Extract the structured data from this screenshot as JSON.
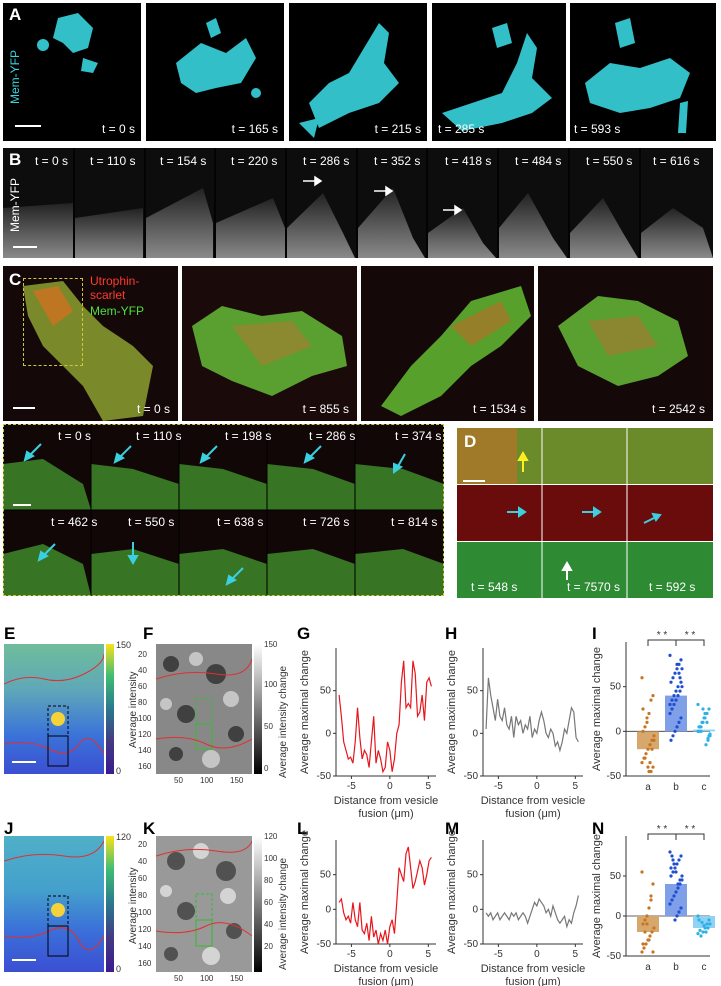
{
  "figure": {
    "panel_letters": [
      "A",
      "B",
      "C",
      "D",
      "E",
      "F",
      "G",
      "H",
      "I",
      "J",
      "K",
      "L",
      "M",
      "N"
    ],
    "panelA": {
      "channel_label": "Mem-YFP",
      "times": [
        "t = 0 s",
        "t = 165 s",
        "t = 215 s",
        "t = 285 s",
        "t = 593 s"
      ],
      "color": "#39d4de"
    },
    "panelB": {
      "channel_label": "Mem-YFP",
      "times": [
        "t = 0 s",
        "t = 110 s",
        "t = 154 s",
        "t = 220 s",
        "t = 286 s",
        "t = 352 s",
        "t = 418 s",
        "t = 484 s",
        "t = 550 s",
        "t = 616 s"
      ]
    },
    "panelC": {
      "legend_red": "Utrophin-\nscarlet",
      "legend_green": "Mem-YFP",
      "times": [
        "t = 0 s",
        "t = 855 s",
        "t = 1534 s",
        "t = 2542 s"
      ],
      "inset_times_row1": [
        "t = 0 s",
        "t = 110 s",
        "t = 198 s",
        "t = 286 s",
        "t = 374 s"
      ],
      "inset_times_row2": [
        "t = 462 s",
        "t = 550 s",
        "t = 638 s",
        "t = 726 s",
        "t = 814 s"
      ]
    },
    "panelD": {
      "times": [
        "t = 548 s",
        "t = 7570 s",
        "t = 592 s"
      ]
    },
    "heatmaps": {
      "E": {
        "cbar_label": "Average intensity",
        "cbar_max": "150",
        "cbar_min": "0"
      },
      "F": {
        "cbar_label": "Average intensity change",
        "cbar_ticks": [
          "150",
          "100",
          "50",
          "0"
        ],
        "y_ticks": [
          "20",
          "40",
          "60",
          "80",
          "100",
          "120",
          "140",
          "160"
        ],
        "x_ticks": [
          "50",
          "100",
          "150"
        ]
      },
      "J": {
        "cbar_label": "Average intensity",
        "cbar_max": "120",
        "cbar_min": "0"
      },
      "K": {
        "cbar_label": "Average intensity change",
        "cbar_ticks": [
          "120",
          "100",
          "80",
          "60",
          "40",
          "20"
        ],
        "y_ticks": [
          "20",
          "40",
          "60",
          "80",
          "100",
          "120",
          "140",
          "160"
        ],
        "x_ticks": [
          "50",
          "100",
          "150"
        ]
      }
    }
  },
  "chart_data": [
    {
      "id": "G",
      "type": "line",
      "color": "#e8161c",
      "ylabel": "Average maximal change",
      "xlabel": "Distance from vesicle fusion (μm)",
      "xlim": [
        -7,
        6
      ],
      "ylim": [
        -50,
        100
      ],
      "yticks": [
        "50",
        "0",
        "-50"
      ],
      "xticks": [
        "-5",
        "0",
        "5"
      ],
      "x": [
        -6.6,
        -6.3,
        -6.0,
        -5.7,
        -5.4,
        -5.1,
        -4.8,
        -4.5,
        -4.2,
        -3.9,
        -3.6,
        -3.3,
        -3.0,
        -2.7,
        -2.4,
        -2.1,
        -1.8,
        -1.5,
        -1.2,
        -0.9,
        -0.6,
        -0.3,
        0,
        0.3,
        0.6,
        0.9,
        1.2,
        1.5,
        1.8,
        2.1,
        2.4,
        2.7,
        3.0,
        3.3,
        3.6,
        3.9,
        4.2,
        4.5,
        4.8,
        5.1,
        5.4
      ],
      "y": [
        45,
        20,
        -10,
        -20,
        -30,
        -28,
        -35,
        -10,
        30,
        -5,
        -30,
        -20,
        -25,
        -40,
        -10,
        20,
        -35,
        -20,
        -30,
        -45,
        -40,
        -10,
        -20,
        -45,
        -30,
        0,
        10,
        60,
        85,
        30,
        35,
        30,
        85,
        70,
        20,
        25,
        45,
        15,
        60,
        65,
        55
      ]
    },
    {
      "id": "H",
      "type": "line",
      "color": "#777777",
      "ylabel": "Average maximal change",
      "xlabel": "Distance from vesicle fusion (μm)",
      "xlim": [
        -7,
        6
      ],
      "ylim": [
        -50,
        100
      ],
      "yticks": [
        "50",
        "0",
        "-50"
      ],
      "xticks": [
        "-5",
        "0",
        "5"
      ],
      "x": [
        -6.6,
        -6.3,
        -6.0,
        -5.7,
        -5.4,
        -5.1,
        -4.8,
        -4.5,
        -4.2,
        -3.9,
        -3.6,
        -3.3,
        -3.0,
        -2.7,
        -2.4,
        -2.1,
        -1.8,
        -1.5,
        -1.2,
        -0.9,
        -0.6,
        -0.3,
        0,
        0.3,
        0.6,
        0.9,
        1.2,
        1.5,
        1.8,
        2.1,
        2.4,
        2.7,
        3.0,
        3.3,
        3.6,
        3.9,
        4.2,
        4.5,
        4.8,
        5.1,
        5.4
      ],
      "y": [
        5,
        65,
        45,
        30,
        15,
        40,
        20,
        15,
        30,
        10,
        5,
        20,
        -5,
        20,
        10,
        15,
        0,
        10,
        5,
        20,
        -5,
        5,
        0,
        15,
        25,
        15,
        0,
        -5,
        5,
        0,
        -15,
        -10,
        -20,
        -10,
        5,
        0,
        15,
        30,
        25,
        -5,
        -10
      ]
    },
    {
      "id": "I",
      "type": "bar",
      "ylabel": "Average maximal change",
      "categories": [
        "a",
        "b",
        "c"
      ],
      "values": [
        -20,
        40,
        2
      ],
      "colors": [
        "#d7a86e",
        "#7f9fe8",
        "#8fd3f2"
      ],
      "dot_colors": [
        "#c87420",
        "#1f4fd0",
        "#2fb0e6"
      ],
      "ylim": [
        -50,
        100
      ],
      "yticks": [
        "50",
        "0",
        "-50"
      ],
      "sig": [
        "* *",
        "* *"
      ],
      "points": [
        [
          60,
          40,
          35,
          20,
          10,
          5,
          0,
          -5,
          -10,
          -15,
          -20,
          -25,
          -30,
          -35,
          -40,
          -45,
          -45,
          15,
          -30,
          25,
          -10,
          -20,
          -35,
          -40
        ],
        [
          85,
          80,
          75,
          70,
          65,
          60,
          55,
          50,
          45,
          40,
          35,
          30,
          25,
          20,
          15,
          10,
          5,
          0,
          -5,
          -10,
          70,
          60,
          50,
          45,
          40,
          35,
          30,
          55,
          65,
          75
        ],
        [
          30,
          25,
          20,
          15,
          10,
          5,
          0,
          -5,
          -10,
          -15,
          15,
          10,
          5,
          0,
          -5,
          10,
          20,
          25,
          0,
          5,
          -3,
          -8
        ]
      ]
    },
    {
      "id": "L",
      "type": "line",
      "color": "#e8161c",
      "ylabel": "Average maximal change",
      "xlabel": "Distance from vesicle fusion (μm)",
      "xlim": [
        -7,
        6
      ],
      "ylim": [
        -50,
        100
      ],
      "yticks": [
        "50",
        "0",
        "-50"
      ],
      "xticks": [
        "-5",
        "0",
        "5"
      ],
      "x": [
        -6.6,
        -6.3,
        -6.0,
        -5.7,
        -5.4,
        -5.1,
        -4.8,
        -4.5,
        -4.2,
        -3.9,
        -3.6,
        -3.3,
        -3.0,
        -2.7,
        -2.4,
        -2.1,
        -1.8,
        -1.5,
        -1.2,
        -0.9,
        -0.6,
        -0.3,
        0,
        0.3,
        0.6,
        0.9,
        1.2,
        1.5,
        1.8,
        2.1,
        2.4,
        2.7,
        3.0,
        3.3,
        3.6,
        3.9,
        4.2,
        4.5,
        4.8,
        5.1,
        5.4
      ],
      "y": [
        10,
        15,
        -5,
        -15,
        -10,
        -20,
        10,
        -15,
        -25,
        10,
        -30,
        -35,
        -20,
        -45,
        -10,
        -40,
        -30,
        -50,
        -35,
        -45,
        -30,
        -50,
        -25,
        -15,
        -35,
        10,
        60,
        50,
        40,
        80,
        90,
        60,
        30,
        40,
        55,
        70,
        60,
        35,
        50,
        70,
        75
      ]
    },
    {
      "id": "M",
      "type": "line",
      "color": "#777777",
      "ylabel": "Average maximal change",
      "xlabel": "Distance from vesicle fusion (μm)",
      "xlim": [
        -7,
        6
      ],
      "ylim": [
        -50,
        100
      ],
      "yticks": [
        "50",
        "0",
        "-50"
      ],
      "xticks": [
        "-5",
        "0",
        "5"
      ],
      "x": [
        -6.6,
        -6.3,
        -6.0,
        -5.7,
        -5.4,
        -5.1,
        -4.8,
        -4.5,
        -4.2,
        -3.9,
        -3.6,
        -3.3,
        -3.0,
        -2.7,
        -2.4,
        -2.1,
        -1.8,
        -1.5,
        -1.2,
        -0.9,
        -0.6,
        -0.3,
        0,
        0.3,
        0.6,
        0.9,
        1.2,
        1.5,
        1.8,
        2.1,
        2.4,
        2.7,
        3.0,
        3.3,
        3.6,
        3.9,
        4.2,
        4.5,
        4.8,
        5.1,
        5.4
      ],
      "y": [
        -5,
        -10,
        -5,
        -15,
        -10,
        -5,
        -15,
        -10,
        -5,
        -10,
        -15,
        -5,
        -10,
        -5,
        -15,
        -10,
        -5,
        -10,
        -20,
        -10,
        0,
        10,
        5,
        15,
        10,
        5,
        -5,
        0,
        -10,
        5,
        -5,
        -15,
        -20,
        -15,
        -10,
        -25,
        -15,
        -20,
        -5,
        5,
        20
      ]
    },
    {
      "id": "N",
      "type": "bar",
      "ylabel": "Average maximal change",
      "categories": [
        "a",
        "b",
        "c"
      ],
      "values": [
        -20,
        40,
        -15
      ],
      "colors": [
        "#d7a86e",
        "#7f9fe8",
        "#8fd3f2"
      ],
      "dot_colors": [
        "#c87420",
        "#1f4fd0",
        "#2fb0e6"
      ],
      "ylim": [
        -50,
        100
      ],
      "yticks": [
        "50",
        "0",
        "-50"
      ],
      "sig": [
        "* *",
        "* *"
      ],
      "points": [
        [
          55,
          40,
          25,
          10,
          0,
          -5,
          -10,
          -15,
          -20,
          -25,
          -30,
          -35,
          -40,
          -45,
          -45,
          20,
          -30,
          -10,
          -20,
          -35
        ],
        [
          80,
          75,
          70,
          65,
          60,
          55,
          50,
          45,
          40,
          35,
          30,
          25,
          20,
          15,
          10,
          5,
          0,
          -5,
          70,
          60,
          50,
          45,
          40,
          55,
          65,
          75
        ],
        [
          0,
          -5,
          -10,
          -15,
          -20,
          -25,
          -5,
          -10,
          -15,
          -20,
          -12,
          -8,
          -18,
          -22
        ]
      ]
    }
  ]
}
